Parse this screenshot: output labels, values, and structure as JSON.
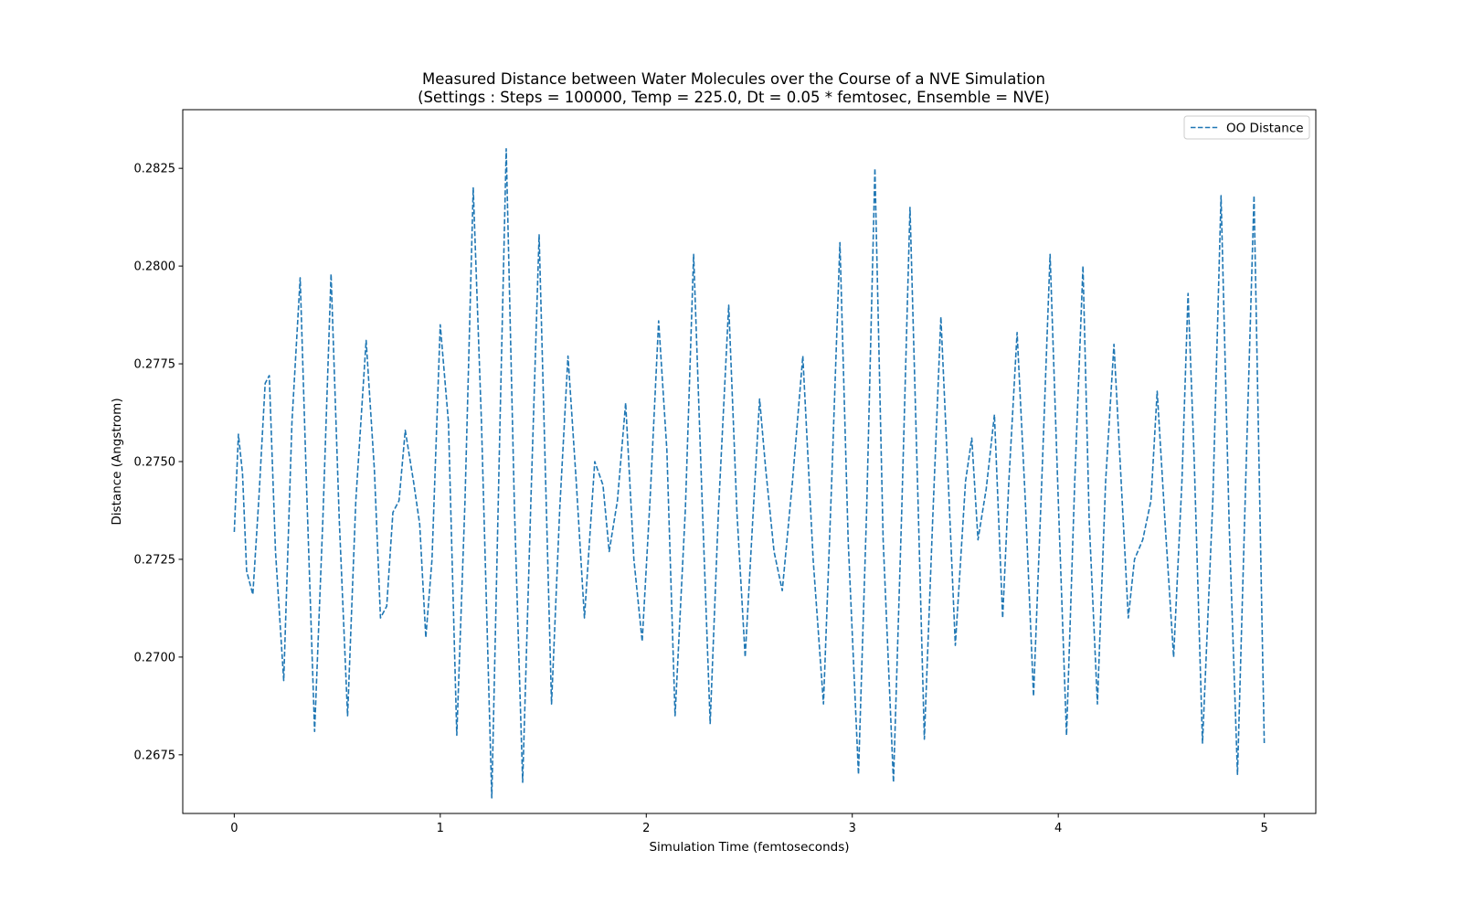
{
  "chart_data": {
    "type": "line",
    "title_line1": "Measured Distance between Water Molecules over the Course of a NVE Simulation",
    "title_line2": "(Settings : Steps = 100000, Temp = 225.0, Dt = 0.05 * femtosec, Ensemble = NVE)",
    "xlabel": "Simulation Time (femtoseconds)",
    "ylabel": "Distance (Angstrom)",
    "xlim": [
      -0.25,
      5.25
    ],
    "ylim": [
      0.266,
      0.284
    ],
    "xticks": [
      0,
      1,
      2,
      3,
      4,
      5
    ],
    "xtick_labels": [
      "0",
      "1",
      "2",
      "3",
      "4",
      "5"
    ],
    "yticks": [
      0.2675,
      0.27,
      0.2725,
      0.275,
      0.2775,
      0.28,
      0.2825
    ],
    "ytick_labels": [
      "0.2675",
      "0.2700",
      "0.2725",
      "0.2750",
      "0.2775",
      "0.2800",
      "0.2825"
    ],
    "grid": false,
    "legend_position": "top-right",
    "series": [
      {
        "name": "OO Distance",
        "color": "#1f77b4",
        "line_style": "dashed",
        "x": [
          0.0,
          0.02,
          0.04,
          0.06,
          0.09,
          0.12,
          0.15,
          0.17,
          0.2,
          0.24,
          0.28,
          0.32,
          0.35,
          0.39,
          0.43,
          0.47,
          0.51,
          0.55,
          0.59,
          0.64,
          0.68,
          0.71,
          0.74,
          0.77,
          0.8,
          0.83,
          0.87,
          0.9,
          0.93,
          0.96,
          1.0,
          1.04,
          1.08,
          1.12,
          1.16,
          1.2,
          1.25,
          1.29,
          1.32,
          1.36,
          1.4,
          1.44,
          1.48,
          1.54,
          1.58,
          1.62,
          1.66,
          1.7,
          1.75,
          1.79,
          1.82,
          1.86,
          1.9,
          1.94,
          1.98,
          2.02,
          2.06,
          2.1,
          2.14,
          2.19,
          2.23,
          2.27,
          2.31,
          2.35,
          2.4,
          2.44,
          2.48,
          2.52,
          2.55,
          2.58,
          2.62,
          2.66,
          2.71,
          2.76,
          2.81,
          2.86,
          2.9,
          2.94,
          2.98,
          3.03,
          3.07,
          3.11,
          3.15,
          3.2,
          3.24,
          3.28,
          3.32,
          3.35,
          3.39,
          3.43,
          3.47,
          3.5,
          3.55,
          3.58,
          3.61,
          3.65,
          3.69,
          3.73,
          3.76,
          3.8,
          3.84,
          3.88,
          3.92,
          3.96,
          4.0,
          4.04,
          4.08,
          4.12,
          4.15,
          4.19,
          4.23,
          4.27,
          4.31,
          4.34,
          4.37,
          4.41,
          4.45,
          4.48,
          4.52,
          4.56,
          4.6,
          4.63,
          4.66,
          4.7,
          4.75,
          4.79,
          4.83,
          4.87,
          4.91,
          4.95,
          5.0
        ],
        "values": [
          0.2732,
          0.2757,
          0.2747,
          0.2722,
          0.2716,
          0.2741,
          0.277,
          0.2772,
          0.2727,
          0.2694,
          0.276,
          0.2797,
          0.2745,
          0.2681,
          0.2735,
          0.2798,
          0.2735,
          0.2685,
          0.274,
          0.2781,
          0.2748,
          0.271,
          0.2713,
          0.2737,
          0.274,
          0.2758,
          0.2745,
          0.2734,
          0.2705,
          0.2725,
          0.2785,
          0.276,
          0.268,
          0.274,
          0.282,
          0.276,
          0.2664,
          0.276,
          0.283,
          0.2738,
          0.2668,
          0.274,
          0.2808,
          0.2688,
          0.2738,
          0.2777,
          0.2745,
          0.271,
          0.275,
          0.2744,
          0.2727,
          0.274,
          0.2765,
          0.2725,
          0.2704,
          0.2742,
          0.2786,
          0.2753,
          0.2685,
          0.2738,
          0.2803,
          0.2742,
          0.2683,
          0.2737,
          0.279,
          0.2737,
          0.27,
          0.2738,
          0.2766,
          0.2748,
          0.2727,
          0.2717,
          0.2745,
          0.2777,
          0.2725,
          0.2688,
          0.2745,
          0.2806,
          0.273,
          0.267,
          0.2738,
          0.2825,
          0.273,
          0.2668,
          0.2737,
          0.2815,
          0.2738,
          0.2679,
          0.2735,
          0.2787,
          0.274,
          0.2703,
          0.2745,
          0.2756,
          0.273,
          0.2743,
          0.2762,
          0.271,
          0.2745,
          0.2783,
          0.274,
          0.269,
          0.2745,
          0.2803,
          0.274,
          0.268,
          0.2745,
          0.28,
          0.2735,
          0.2688,
          0.2745,
          0.278,
          0.274,
          0.271,
          0.2725,
          0.273,
          0.274,
          0.2768,
          0.2733,
          0.27,
          0.2745,
          0.2793,
          0.275,
          0.2678,
          0.274,
          0.2818,
          0.2733,
          0.267,
          0.2745,
          0.2818,
          0.2678
        ]
      }
    ]
  }
}
